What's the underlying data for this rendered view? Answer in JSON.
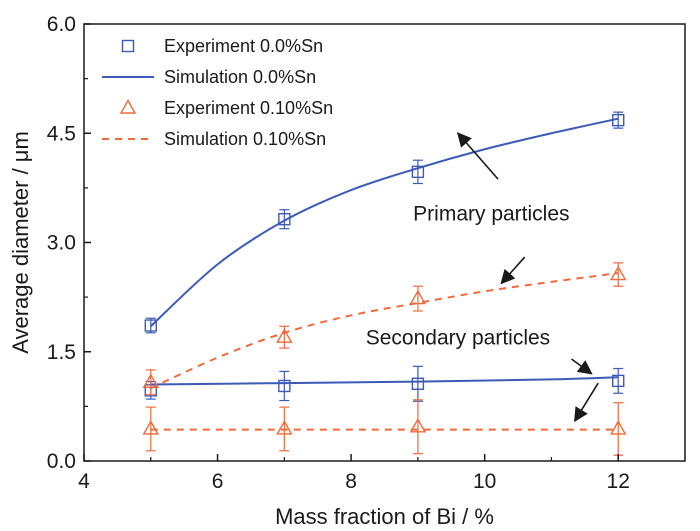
{
  "chart_data": {
    "type": "scatter",
    "xlabel": "Mass fraction of Bi / %",
    "ylabel": "Average diameter / μm",
    "xlim": [
      4,
      13
    ],
    "ylim": [
      0,
      6
    ],
    "xticks": [
      "4",
      "6",
      "8",
      "10",
      "12"
    ],
    "yticks": [
      "0.0",
      "1.5",
      "3.0",
      "4.5",
      "6.0"
    ],
    "grid": false,
    "legend_position": "top-left",
    "colors": {
      "blue": "#3b5bb5",
      "red": "#ef6a3c"
    },
    "series": [
      {
        "name": "Experiment 0.0%Sn",
        "kind": "markers",
        "marker": "square",
        "color": "#3b5bb5",
        "points": [
          {
            "x": 5,
            "y": 1.86,
            "err": 0.1
          },
          {
            "x": 7,
            "y": 3.32,
            "err": 0.13
          },
          {
            "x": 9,
            "y": 3.97,
            "err": 0.16
          },
          {
            "x": 12,
            "y": 4.68,
            "err": 0.11
          },
          {
            "x": 5,
            "y": 0.97,
            "err": 0.12
          },
          {
            "x": 7,
            "y": 1.03,
            "err": 0.2
          },
          {
            "x": 9,
            "y": 1.06,
            "err": 0.24
          },
          {
            "x": 12,
            "y": 1.1,
            "err": 0.17
          }
        ]
      },
      {
        "name": "Simulation 0.0%Sn",
        "kind": "line",
        "dash": "solid",
        "color": "#3b5bb5",
        "curves": [
          {
            "x": [
              5,
              6,
              7,
              8,
              9,
              10,
              11,
              12
            ],
            "y": [
              1.85,
              2.7,
              3.3,
              3.72,
              4.02,
              4.28,
              4.5,
              4.7
            ]
          },
          {
            "x": [
              5,
              7,
              9,
              11,
              12
            ],
            "y": [
              1.05,
              1.07,
              1.09,
              1.12,
              1.15
            ]
          }
        ]
      },
      {
        "name": "Experiment 0.10%Sn",
        "kind": "markers",
        "marker": "triangle",
        "color": "#ef6a3c",
        "points": [
          {
            "x": 5,
            "y": 1.08,
            "err": 0.17
          },
          {
            "x": 7,
            "y": 1.7,
            "err": 0.15
          },
          {
            "x": 9,
            "y": 2.23,
            "err": 0.17
          },
          {
            "x": 12,
            "y": 2.56,
            "err": 0.16
          },
          {
            "x": 5,
            "y": 0.44,
            "err": 0.3
          },
          {
            "x": 7,
            "y": 0.44,
            "err": 0.3
          },
          {
            "x": 9,
            "y": 0.47,
            "err": 0.37
          },
          {
            "x": 12,
            "y": 0.44,
            "err": 0.36
          }
        ]
      },
      {
        "name": "Simulation 0.10%Sn",
        "kind": "line",
        "dash": "dashed",
        "color": "#ef6a3c",
        "curves": [
          {
            "x": [
              5,
              6,
              7,
              8,
              9,
              10,
              11,
              12
            ],
            "y": [
              1.0,
              1.42,
              1.76,
              2.0,
              2.17,
              2.33,
              2.46,
              2.58
            ]
          },
          {
            "x": [
              5,
              12
            ],
            "y": [
              0.43,
              0.43
            ]
          }
        ]
      }
    ],
    "annotations": [
      {
        "text": "Primary particles",
        "x": 10.1,
        "y": 3.3,
        "arrows": [
          {
            "from": [
              10.2,
              3.87
            ],
            "to": [
              9.6,
              4.5
            ]
          },
          {
            "from": [
              10.6,
              2.8
            ],
            "to": [
              10.25,
              2.44
            ]
          }
        ]
      },
      {
        "text": "Secondary particles",
        "x": 9.6,
        "y": 1.6,
        "arrows": [
          {
            "from": [
              11.3,
              1.4
            ],
            "to": [
              11.6,
              1.2
            ]
          },
          {
            "from": [
              11.7,
              1.07
            ],
            "to": [
              11.35,
              0.55
            ]
          }
        ]
      }
    ]
  }
}
